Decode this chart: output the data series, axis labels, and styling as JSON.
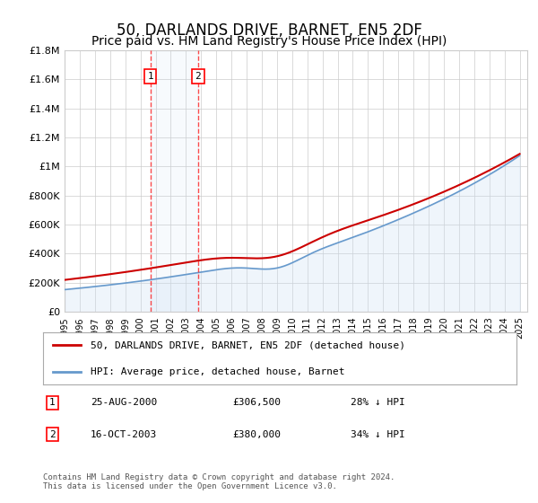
{
  "title": "50, DARLANDS DRIVE, BARNET, EN5 2DF",
  "subtitle": "Price paid vs. HM Land Registry's House Price Index (HPI)",
  "title_fontsize": 12,
  "subtitle_fontsize": 10,
  "ylabel": "",
  "ylim": [
    0,
    1800000
  ],
  "yticks": [
    0,
    200000,
    400000,
    600000,
    800000,
    1000000,
    1200000,
    1400000,
    1600000,
    1800000
  ],
  "ytick_labels": [
    "£0",
    "£200K",
    "£400K",
    "£600K",
    "£800K",
    "£1M",
    "£1.2M",
    "£1.4M",
    "£1.6M",
    "£1.8M"
  ],
  "x_start_year": 1995,
  "x_end_year": 2025,
  "property_color": "#cc0000",
  "hpi_color": "#6699cc",
  "hpi_fill_color": "#cce0f5",
  "marker1_year": 2000.65,
  "marker2_year": 2003.8,
  "marker1_label": "1",
  "marker2_label": "2",
  "transaction1": {
    "date": "25-AUG-2000",
    "price": "£306,500",
    "hpi": "28% ↓ HPI"
  },
  "transaction2": {
    "date": "16-OCT-2003",
    "price": "£380,000",
    "hpi": "34% ↓ HPI"
  },
  "legend_property": "50, DARLANDS DRIVE, BARNET, EN5 2DF (detached house)",
  "legend_hpi": "HPI: Average price, detached house, Barnet",
  "footer": "Contains HM Land Registry data © Crown copyright and database right 2024.\nThis data is licensed under the Open Government Licence v3.0.",
  "background_color": "#ffffff",
  "grid_color": "#cccccc"
}
